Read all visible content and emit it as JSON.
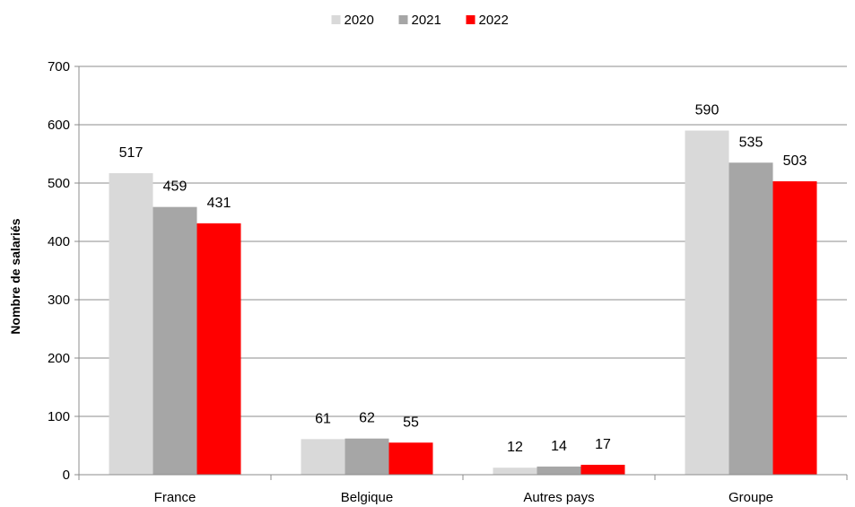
{
  "chart_data": {
    "type": "bar",
    "categories": [
      "France",
      "Belgique",
      "Autres pays",
      "Groupe"
    ],
    "series": [
      {
        "name": "2020",
        "values": [
          517,
          61,
          12,
          590
        ],
        "color": "#d9d9d9"
      },
      {
        "name": "2021",
        "values": [
          459,
          62,
          14,
          535
        ],
        "color": "#a6a6a6"
      },
      {
        "name": "2022",
        "values": [
          431,
          55,
          17,
          503
        ],
        "color": "#ff0000"
      }
    ],
    "title": "",
    "xlabel": "",
    "ylabel": "Nombre de salariés",
    "ylim": [
      0,
      700
    ],
    "yticks": [
      0,
      100,
      200,
      300,
      400,
      500,
      600,
      700
    ],
    "grid": true,
    "legend_position": "top-center",
    "data_labels": true
  }
}
